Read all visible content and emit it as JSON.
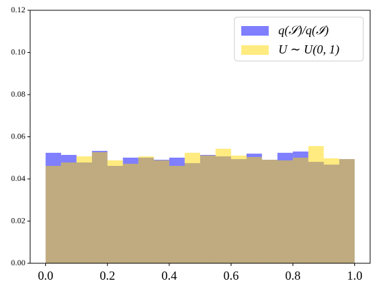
{
  "chart_data": {
    "type": "histogram",
    "bins": [
      0.0,
      0.05,
      0.1,
      0.15,
      0.2,
      0.25,
      0.3,
      0.35,
      0.4,
      0.45,
      0.5,
      0.55,
      0.6,
      0.65,
      0.7,
      0.75,
      0.8,
      0.85,
      0.9,
      0.95,
      1.0
    ],
    "series": [
      {
        "name": "q(𝒮)/q(ℐ)",
        "color": "#0000ff",
        "alpha": 0.5,
        "values": [
          0.0524,
          0.0514,
          0.0478,
          0.0533,
          0.0462,
          0.0501,
          0.0501,
          0.0491,
          0.0501,
          0.0475,
          0.0514,
          0.0507,
          0.0494,
          0.052,
          0.0491,
          0.0524,
          0.053,
          0.0481,
          0.0468,
          0.0494
        ]
      },
      {
        "name": "U ∼ U(0, 1)",
        "color": "#ffd700",
        "alpha": 0.5,
        "values": [
          0.0462,
          0.0478,
          0.0507,
          0.0527,
          0.0488,
          0.0472,
          0.0507,
          0.0488,
          0.0462,
          0.0524,
          0.0511,
          0.0543,
          0.0511,
          0.0504,
          0.0491,
          0.0488,
          0.0501,
          0.0556,
          0.0498,
          0.0494
        ]
      }
    ],
    "xlim": [
      -0.05,
      1.05
    ],
    "ylim": [
      0,
      0.12
    ],
    "xticks": [
      {
        "value": 0,
        "label": "0.0"
      },
      {
        "value": 0.2,
        "label": "0.2"
      },
      {
        "value": 0.4,
        "label": "0.4"
      },
      {
        "value": 0.6,
        "label": "0.6"
      },
      {
        "value": 0.8,
        "label": "0.8"
      },
      {
        "value": 1,
        "label": "1.0"
      }
    ],
    "yticks": [
      {
        "value": 0,
        "label": "0.00"
      },
      {
        "value": 0.02,
        "label": "0.02"
      },
      {
        "value": 0.04,
        "label": "0.04"
      },
      {
        "value": 0.06,
        "label": "0.06"
      },
      {
        "value": 0.08,
        "label": "0.08"
      },
      {
        "value": 0.1,
        "label": "0.10"
      },
      {
        "value": 0.12,
        "label": "0.12"
      }
    ],
    "legend": "upper right"
  }
}
